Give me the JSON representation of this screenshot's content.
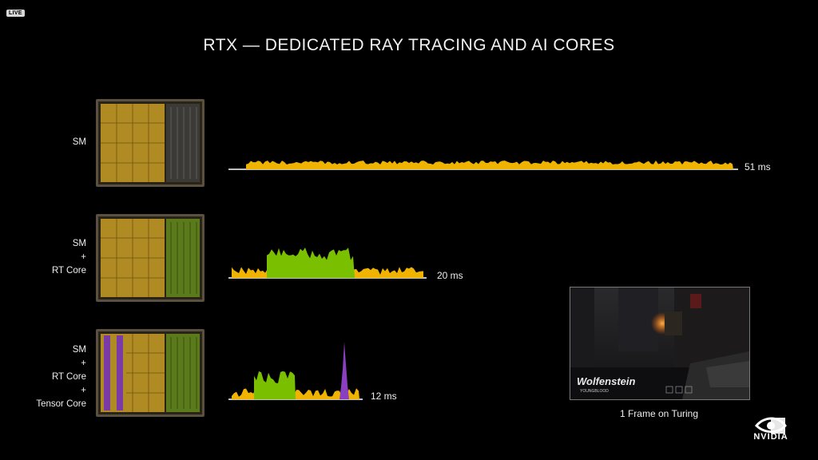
{
  "badge": "LIVE",
  "title": "RTX — DEDICATED RAY TRACING AND AI CORES",
  "rows": [
    {
      "label_lines": [
        "SM"
      ],
      "timing": "51 ms"
    },
    {
      "label_lines": [
        "SM",
        "+",
        "RT Core"
      ],
      "timing": "20 ms"
    },
    {
      "label_lines": [
        "SM",
        "+",
        "RT Core",
        "+",
        "Tensor Core"
      ],
      "timing": "12 ms"
    }
  ],
  "preview": {
    "game_title": "Wolfenstein",
    "game_subtitle": "YOUNGBLOOD",
    "caption": "1 Frame on Turing"
  },
  "brand": {
    "name": "NVIDIA"
  },
  "colors": {
    "sm": "#f0b400",
    "rt": "#7ac000",
    "tensor": "#8a3fc0",
    "background": "#000000"
  }
}
